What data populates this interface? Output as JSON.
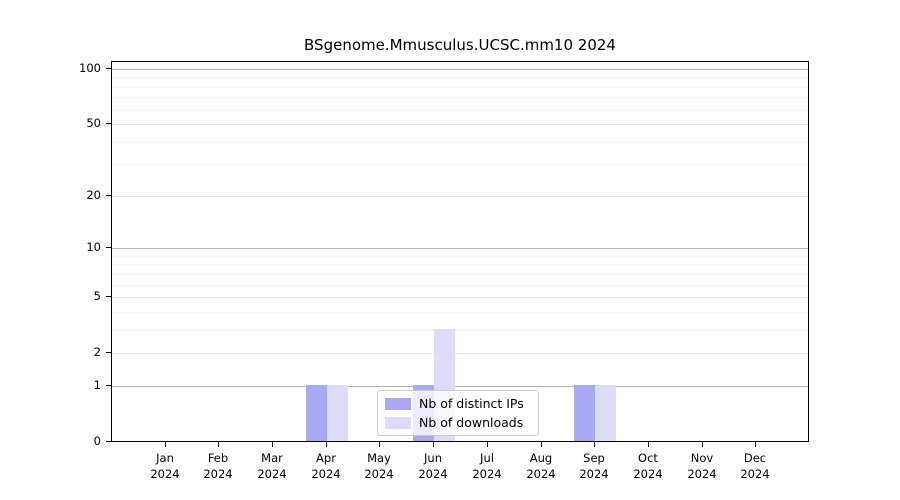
{
  "chart_title": "BSgenome.Mmusculus.UCSC.mm10 2024",
  "legend": {
    "entries": [
      {
        "label": "Nb of distinct IPs",
        "color": "#a8a8f4"
      },
      {
        "label": "Nb of downloads",
        "color": "#dcdcf8"
      }
    ]
  },
  "chart_data": {
    "type": "bar",
    "title": "BSgenome.Mmusculus.UCSC.mm10 2024",
    "categories": [
      "Jan",
      "Feb",
      "Mar",
      "Apr",
      "May",
      "Jun",
      "Jul",
      "Aug",
      "Sep",
      "Oct",
      "Nov",
      "Dec"
    ],
    "x_tick_year": "2024",
    "series": [
      {
        "name": "Nb of distinct IPs",
        "color": "#a8a8f4",
        "values": [
          0,
          0,
          0,
          1,
          0,
          1,
          0,
          0,
          1,
          0,
          0,
          0
        ]
      },
      {
        "name": "Nb of downloads",
        "color": "#dcdcf8",
        "values": [
          0,
          0,
          0,
          1,
          0,
          3,
          0,
          0,
          1,
          0,
          0,
          0
        ]
      }
    ],
    "y_ticks": [
      0,
      1,
      2,
      5,
      10,
      20,
      50,
      100
    ],
    "y_major_gridlines": [
      1,
      10,
      100
    ],
    "y_mid_gridlines": [
      2,
      5,
      20,
      50
    ],
    "y_minor_gridlines": [
      3,
      4,
      6,
      7,
      8,
      9,
      30,
      40,
      60,
      70,
      80,
      90
    ],
    "scale": "log1p",
    "ylim": [
      0,
      110
    ],
    "grid": true,
    "legend_position": "inside-bottom-center",
    "colors": {
      "bar_distinct_ips": "#a8a8f4",
      "bar_downloads": "#dcdcf8",
      "gridline_major": "#b3b3b3",
      "gridline_mid": "#e7e7e7",
      "gridline_minor": "#f2f2f2",
      "axis": "#000000"
    }
  }
}
